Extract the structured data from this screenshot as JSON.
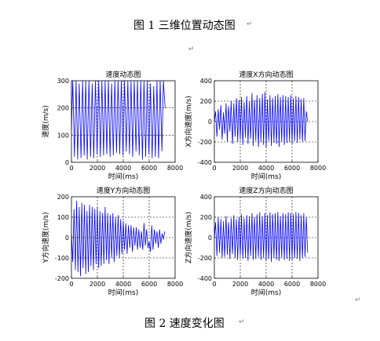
{
  "document": {
    "top_caption": "图 1  三维位置动态图",
    "bottom_caption": "图 2  速度变化图",
    "paragraph_mark": "↵"
  },
  "chart_data": [
    {
      "type": "line",
      "title": "速度动态图",
      "xlabel": "时间(ms)",
      "ylabel": "速度(m/s)",
      "xlim": [
        0,
        8000
      ],
      "ylim": [
        0,
        300
      ],
      "xticks": [
        0,
        2000,
        4000,
        6000,
        8000
      ],
      "yticks": [
        0,
        100,
        200,
        300
      ],
      "grid": true,
      "color": "#0000ff",
      "series": [
        {
          "x": [
            0,
            100,
            230,
            360,
            480,
            600,
            740,
            860,
            980,
            1100,
            1220,
            1350,
            1470,
            1600,
            1720,
            1850,
            1980,
            2100,
            2230,
            2350,
            2480,
            2600,
            2730,
            2850,
            2980,
            3100,
            3230,
            3350,
            3480,
            3600,
            3730,
            3850,
            3980,
            4100,
            4230,
            4350,
            4480,
            4600,
            4730,
            4850,
            4980,
            5100,
            5230,
            5350,
            5480,
            5600,
            5730,
            5850,
            5980,
            6100,
            6230,
            6350,
            6480,
            6600,
            6730,
            6850,
            6980,
            7100,
            7230
          ],
          "y": [
            120,
            300,
            20,
            300,
            10,
            290,
            15,
            300,
            25,
            300,
            10,
            300,
            20,
            290,
            15,
            300,
            30,
            300,
            20,
            300,
            25,
            300,
            30,
            300,
            20,
            290,
            25,
            300,
            35,
            300,
            30,
            300,
            25,
            300,
            40,
            300,
            30,
            300,
            20,
            300,
            40,
            300,
            25,
            300,
            10,
            300,
            20,
            300,
            30,
            290,
            15,
            280,
            20,
            300,
            15,
            300,
            40,
            300,
            200
          ]
        }
      ]
    },
    {
      "type": "line",
      "title": "速度X方向动态图",
      "xlabel": "时间(ms)",
      "ylabel": "X方向速度(m/s)",
      "xlim": [
        0,
        8000
      ],
      "ylim": [
        -400,
        400
      ],
      "xticks": [
        0,
        2000,
        4000,
        6000,
        8000
      ],
      "yticks": [
        -400,
        -200,
        0,
        200,
        400
      ],
      "grid": true,
      "color": "#0000ff",
      "series": [
        {
          "x": [
            0,
            100,
            200,
            300,
            400,
            500,
            600,
            700,
            800,
            900,
            1000,
            1100,
            1200,
            1300,
            1400,
            1500,
            1600,
            1700,
            1800,
            1900,
            2000,
            2100,
            2200,
            2300,
            2400,
            2500,
            2600,
            2700,
            2800,
            2900,
            3000,
            3100,
            3200,
            3300,
            3400,
            3500,
            3600,
            3700,
            3800,
            3900,
            4000,
            4100,
            4200,
            4300,
            4400,
            4500,
            4600,
            4700,
            4800,
            4900,
            5000,
            5100,
            5200,
            5300,
            5400,
            5500,
            5600,
            5700,
            5800,
            5900,
            6000,
            6100,
            6200,
            6300,
            6400,
            6500,
            6600,
            6700,
            6800,
            6900,
            7000,
            7100,
            7200
          ],
          "y": [
            0,
            100,
            -150,
            120,
            -80,
            160,
            -180,
            90,
            -120,
            180,
            -200,
            150,
            -100,
            200,
            -220,
            180,
            -150,
            230,
            -200,
            210,
            -180,
            240,
            -230,
            190,
            -160,
            250,
            -220,
            200,
            -170,
            280,
            -240,
            210,
            -190,
            260,
            -250,
            230,
            -200,
            270,
            -230,
            290,
            -260,
            220,
            -190,
            260,
            -240,
            230,
            -210,
            250,
            -220,
            270,
            -250,
            240,
            -200,
            260,
            -230,
            250,
            -210,
            240,
            -200,
            260,
            -220,
            230,
            -190,
            250,
            -210,
            240,
            -180,
            220,
            -200,
            230,
            -190,
            100,
            0
          ]
        }
      ]
    },
    {
      "type": "line",
      "title": "速度Y方向动态图",
      "xlabel": "时间(ms)",
      "ylabel": "Y方向速度(m/s)",
      "xlim": [
        0,
        8000
      ],
      "ylim": [
        -200,
        200
      ],
      "xticks": [
        0,
        2000,
        4000,
        6000,
        8000
      ],
      "yticks": [
        -200,
        -100,
        0,
        100,
        200
      ],
      "grid": true,
      "color": "#0000ff",
      "series": [
        {
          "x": [
            0,
            100,
            200,
            300,
            400,
            500,
            600,
            700,
            800,
            900,
            1000,
            1100,
            1200,
            1300,
            1400,
            1500,
            1600,
            1700,
            1800,
            1900,
            2000,
            2100,
            2200,
            2300,
            2400,
            2500,
            2600,
            2700,
            2800,
            2900,
            3000,
            3100,
            3200,
            3300,
            3400,
            3500,
            3600,
            3700,
            3800,
            3900,
            4000,
            4100,
            4200,
            4300,
            4400,
            4500,
            4600,
            4700,
            4800,
            4900,
            5000,
            5100,
            5200,
            5300,
            5400,
            5500,
            5600,
            5700,
            5800,
            5900,
            6000,
            6100,
            6200,
            6300,
            6400,
            6500,
            6600,
            6700,
            6800,
            6900,
            7000,
            7100,
            7200
          ],
          "y": [
            20,
            -120,
            140,
            -160,
            180,
            -170,
            150,
            -190,
            170,
            -150,
            160,
            -180,
            130,
            -170,
            160,
            -140,
            150,
            -160,
            140,
            -130,
            150,
            -150,
            130,
            -140,
            120,
            -130,
            150,
            -110,
            120,
            -130,
            110,
            -100,
            120,
            -120,
            100,
            -90,
            110,
            -100,
            90,
            -80,
            80,
            -60,
            70,
            -80,
            60,
            -50,
            60,
            -70,
            50,
            -40,
            50,
            -60,
            40,
            -50,
            30,
            -60,
            70,
            -40,
            40,
            -50,
            -20,
            -70,
            60,
            -60,
            40,
            -30,
            30,
            -50,
            40,
            -30,
            20,
            -10,
            30
          ]
        }
      ]
    },
    {
      "type": "line",
      "title": "速度Z方向动态图",
      "xlabel": "时间(ms)",
      "ylabel": "Z方向速度(m/s)",
      "xlim": [
        0,
        8000
      ],
      "ylim": [
        -400,
        400
      ],
      "xticks": [
        0,
        2000,
        4000,
        6000,
        8000
      ],
      "yticks": [
        -400,
        -200,
        0,
        200,
        400
      ],
      "grid": true,
      "color": "#0000ff",
      "series": [
        {
          "x": [
            0,
            100,
            200,
            300,
            400,
            500,
            600,
            700,
            800,
            900,
            1000,
            1100,
            1200,
            1300,
            1400,
            1500,
            1600,
            1700,
            1800,
            1900,
            2000,
            2100,
            2200,
            2300,
            2400,
            2500,
            2600,
            2700,
            2800,
            2900,
            3000,
            3100,
            3200,
            3300,
            3400,
            3500,
            3600,
            3700,
            3800,
            3900,
            4000,
            4100,
            4200,
            4300,
            4400,
            4500,
            4600,
            4700,
            4800,
            4900,
            5000,
            5100,
            5200,
            5300,
            5400,
            5500,
            5600,
            5700,
            5800,
            5900,
            6000,
            6100,
            6200,
            6300,
            6400,
            6500,
            6600,
            6700,
            6800,
            6900,
            7000,
            7100,
            7200
          ],
          "y": [
            0,
            150,
            -180,
            200,
            -150,
            180,
            -200,
            160,
            -190,
            210,
            -170,
            150,
            -210,
            190,
            -160,
            220,
            -200,
            180,
            -220,
            200,
            -180,
            230,
            -210,
            190,
            -200,
            220,
            -230,
            210,
            -180,
            240,
            -220,
            200,
            -210,
            230,
            -190,
            250,
            -220,
            210,
            -200,
            240,
            -230,
            220,
            -210,
            250,
            -240,
            230,
            -200,
            240,
            -220,
            250,
            -230,
            210,
            -200,
            240,
            -220,
            230,
            -210,
            250,
            -230,
            240,
            -220,
            230,
            -200,
            250,
            -210,
            240,
            -230,
            220,
            -200,
            240,
            -190,
            200,
            -150
          ]
        }
      ]
    }
  ]
}
